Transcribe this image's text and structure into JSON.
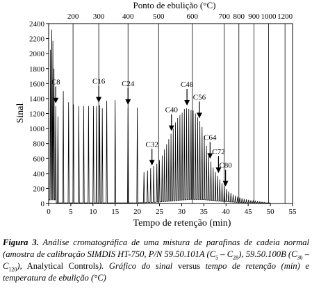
{
  "chart_data": {
    "type": "line",
    "xlabel": "Tempo de retenção (min)",
    "ylabel": "Sinal",
    "top_axis_label": "Ponto de ebulição (°C)",
    "xlim": [
      0,
      55
    ],
    "ylim": [
      0,
      2400
    ],
    "x_ticks": [
      0,
      5,
      10,
      15,
      20,
      25,
      30,
      35,
      40,
      45,
      50,
      55
    ],
    "y_ticks": [
      0,
      200,
      400,
      600,
      800,
      1000,
      1200,
      1400,
      1600,
      1800,
      2000,
      2200,
      2400
    ],
    "top_axis_ticks": [
      {
        "label": "200",
        "x": 5.5
      },
      {
        "label": "300",
        "x": 11.3
      },
      {
        "label": "400",
        "x": 17.9
      },
      {
        "label": "500",
        "x": 24.8
      },
      {
        "label": "600",
        "x": 32.4
      },
      {
        "label": "700",
        "x": 39.6
      },
      {
        "label": "800",
        "x": 42.9
      },
      {
        "label": "900",
        "x": 46.3
      },
      {
        "label": "1000",
        "x": 49.6
      },
      {
        "label": "1200",
        "x": 53.3
      }
    ],
    "annotations": [
      {
        "label": "C8",
        "x": 1.6
      },
      {
        "label": "C16",
        "x": 11.3
      },
      {
        "label": "C24",
        "x": 17.9
      },
      {
        "label": "C32",
        "x": 23.3
      },
      {
        "label": "C40",
        "x": 27.7
      },
      {
        "label": "C48",
        "x": 31.2
      },
      {
        "label": "C56",
        "x": 34.0
      },
      {
        "label": "C64",
        "x": 36.4
      },
      {
        "label": "C72",
        "x": 38.3
      },
      {
        "label": "C80",
        "x": 39.9
      }
    ],
    "peaks": [
      [
        0.4,
        2050
      ],
      [
        0.7,
        2320
      ],
      [
        0.95,
        2170
      ],
      [
        1.2,
        1800
      ],
      [
        1.6,
        1300
      ],
      [
        2.1,
        1160
      ],
      [
        3.3,
        1500
      ],
      [
        4.5,
        1350
      ],
      [
        5.6,
        1320
      ],
      [
        6.8,
        1300
      ],
      [
        7.9,
        1300
      ],
      [
        9.0,
        1300
      ],
      [
        10.1,
        1300
      ],
      [
        10.8,
        1300
      ],
      [
        11.5,
        1310
      ],
      [
        12.1,
        1270
      ],
      [
        13.1,
        1370
      ],
      [
        15.0,
        1380
      ],
      [
        17.9,
        1280
      ],
      [
        20.0,
        1280
      ],
      [
        21.5,
        420
      ],
      [
        22.3,
        440
      ],
      [
        23.0,
        470
      ],
      [
        23.7,
        500
      ],
      [
        24.4,
        530
      ],
      [
        25.0,
        580
      ],
      [
        25.6,
        640
      ],
      [
        26.1,
        720
      ],
      [
        26.6,
        790
      ],
      [
        27.1,
        860
      ],
      [
        27.6,
        930
      ],
      [
        28.1,
        1000
      ],
      [
        28.6,
        1080
      ],
      [
        29.1,
        1140
      ],
      [
        29.6,
        1180
      ],
      [
        30.1,
        1210
      ],
      [
        30.6,
        1260
      ],
      [
        31.1,
        1270
      ],
      [
        31.6,
        1260
      ],
      [
        32.1,
        1250
      ],
      [
        32.6,
        1240
      ],
      [
        33.1,
        1200
      ],
      [
        33.6,
        1150
      ],
      [
        34.1,
        1100
      ],
      [
        34.6,
        1020
      ],
      [
        35.1,
        900
      ],
      [
        35.6,
        770
      ],
      [
        36.1,
        660
      ],
      [
        36.6,
        560
      ],
      [
        37.1,
        480
      ],
      [
        37.6,
        420
      ],
      [
        38.1,
        370
      ],
      [
        38.6,
        320
      ],
      [
        39.1,
        270
      ],
      [
        39.6,
        230
      ],
      [
        40.1,
        190
      ],
      [
        40.6,
        160
      ],
      [
        41.1,
        140
      ],
      [
        41.6,
        120
      ],
      [
        42.1,
        105
      ],
      [
        42.6,
        92
      ],
      [
        43.1,
        80
      ],
      [
        43.6,
        70
      ],
      [
        44.1,
        62
      ],
      [
        44.6,
        55
      ],
      [
        45.1,
        48
      ],
      [
        45.6,
        42
      ],
      [
        46.1,
        36
      ],
      [
        46.6,
        32
      ],
      [
        47.1,
        28
      ],
      [
        47.6,
        24
      ],
      [
        48.1,
        20
      ],
      [
        48.6,
        17
      ]
    ]
  },
  "caption": {
    "lead": "Figura 3.",
    "t1": " Análise cromatográfica de uma mistura de parafinas de cadeia normal (amostra de calibração SIMDIS HT-750, P/N 59.50.101A (C",
    "s1": "5",
    "t2": " – C",
    "s2": "28",
    "t3": "),",
    "t4": "59.50.100B (C",
    "s3": "30",
    "t5": " – C",
    "s4": "120",
    "t6": "),",
    "t7": " Analytical Controls",
    "t8": "). Gráfico do sinal",
    "t9": " versus ",
    "t10": "tempo de retenção (min) e temperatura de ebulição (°C)"
  }
}
